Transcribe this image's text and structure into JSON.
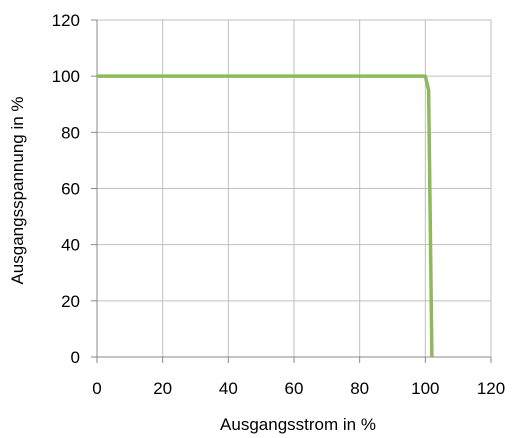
{
  "chart_data": {
    "type": "line",
    "title": "",
    "xlabel": "Ausgangsstrom in %",
    "ylabel": "Ausgangsspannung in %",
    "xlim": [
      0,
      120
    ],
    "ylim": [
      0,
      120
    ],
    "x_ticks": [
      0,
      20,
      40,
      60,
      80,
      100,
      120
    ],
    "y_ticks": [
      0,
      20,
      40,
      60,
      80,
      100,
      120
    ],
    "grid": true,
    "legend": "none",
    "series": [
      {
        "color": "#8dbb5a",
        "x": [
          0,
          100,
          101,
          102
        ],
        "y": [
          100,
          100,
          95,
          0
        ]
      }
    ]
  }
}
